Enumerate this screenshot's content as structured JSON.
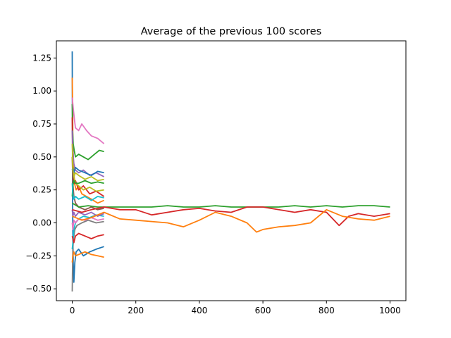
{
  "chart_data": {
    "type": "line",
    "title": "Average of the previous 100 scores",
    "xlabel": "",
    "ylabel": "",
    "xlim": [
      -50,
      1050
    ],
    "ylim": [
      -0.59,
      1.38
    ],
    "grid": false,
    "xticks": [
      0,
      200,
      400,
      600,
      800,
      1000
    ],
    "xtick_labels": [
      "0",
      "200",
      "400",
      "600",
      "800",
      "1000"
    ],
    "yticks": [
      -0.5,
      -0.25,
      0.0,
      0.25,
      0.5,
      0.75,
      1.0,
      1.25
    ],
    "ytick_labels": [
      "−0.50",
      "−0.25",
      "0.00",
      "0.25",
      "0.50",
      "0.75",
      "1.00",
      "1.25"
    ],
    "series": [
      {
        "color": "#1f77b4",
        "x": [
          0,
          1,
          2,
          3,
          5,
          8,
          12,
          20,
          35,
          55,
          75,
          100
        ],
        "values": [
          1.3,
          0.2,
          -0.1,
          -0.3,
          -0.45,
          -0.3,
          -0.22,
          -0.2,
          -0.25,
          -0.22,
          -0.2,
          -0.18
        ]
      },
      {
        "color": "#ff7f0e",
        "x": [
          0,
          1,
          2,
          4,
          7,
          12,
          20,
          30,
          45,
          60,
          80,
          100
        ],
        "values": [
          1.1,
          0.9,
          0.6,
          0.45,
          0.3,
          0.25,
          0.28,
          0.22,
          0.2,
          0.18,
          0.15,
          0.17
        ]
      },
      {
        "color": "#2ca02c",
        "x": [
          0,
          1,
          3,
          6,
          10,
          20,
          35,
          50,
          70,
          85,
          100
        ],
        "values": [
          0.9,
          0.7,
          0.6,
          0.55,
          0.5,
          0.52,
          0.5,
          0.48,
          0.52,
          0.55,
          0.54
        ]
      },
      {
        "color": "#d62728",
        "x": [
          0,
          1,
          3,
          6,
          10,
          20,
          35,
          55,
          75,
          100
        ],
        "values": [
          0.8,
          0.5,
          0.35,
          0.3,
          0.32,
          0.25,
          0.28,
          0.22,
          0.24,
          0.2
        ]
      },
      {
        "color": "#9467bd",
        "x": [
          0,
          2,
          5,
          10,
          20,
          35,
          55,
          75,
          100
        ],
        "values": [
          0.7,
          0.55,
          0.45,
          0.4,
          0.38,
          0.4,
          0.36,
          0.38,
          0.35
        ]
      },
      {
        "color": "#8c564b",
        "x": [
          0,
          2,
          5,
          10,
          20,
          40,
          60,
          80,
          100
        ],
        "values": [
          0.5,
          0.3,
          0.2,
          0.15,
          0.12,
          0.1,
          0.12,
          0.1,
          0.11
        ]
      },
      {
        "color": "#e377c2",
        "x": [
          0,
          2,
          4,
          7,
          10,
          20,
          30,
          45,
          60,
          80,
          100
        ],
        "values": [
          0.95,
          0.9,
          0.85,
          0.78,
          0.72,
          0.7,
          0.75,
          0.7,
          0.66,
          0.64,
          0.6
        ]
      },
      {
        "color": "#7f7f7f",
        "x": [
          0,
          1,
          2,
          4,
          8,
          15,
          30,
          50,
          75,
          100
        ],
        "values": [
          -0.52,
          -0.3,
          -0.2,
          -0.12,
          -0.05,
          -0.02,
          0.0,
          0.02,
          0.0,
          0.01
        ]
      },
      {
        "color": "#bcbd22",
        "x": [
          0,
          2,
          5,
          10,
          20,
          35,
          55,
          75,
          100
        ],
        "values": [
          0.6,
          0.45,
          0.35,
          0.3,
          0.28,
          0.25,
          0.27,
          0.24,
          0.25
        ]
      },
      {
        "color": "#17becf",
        "x": [
          0,
          2,
          5,
          10,
          20,
          35,
          55,
          75,
          100
        ],
        "values": [
          -0.2,
          -0.15,
          -0.05,
          0.0,
          0.03,
          0.05,
          0.04,
          0.06,
          0.05
        ]
      },
      {
        "color": "#1f77b4",
        "x": [
          0,
          2,
          5,
          10,
          20,
          40,
          60,
          80,
          100
        ],
        "values": [
          0.4,
          0.42,
          0.38,
          0.42,
          0.4,
          0.38,
          0.36,
          0.39,
          0.38
        ]
      },
      {
        "color": "#ff7f0e",
        "x": [
          0,
          2,
          5,
          10,
          20,
          40,
          60,
          80,
          100
        ],
        "values": [
          -0.3,
          -0.25,
          -0.22,
          -0.25,
          -0.24,
          -0.22,
          -0.24,
          -0.25,
          -0.26
        ]
      },
      {
        "color": "#2ca02c",
        "x": [
          0,
          2,
          5,
          10,
          20,
          40,
          60,
          80,
          100
        ],
        "values": [
          0.2,
          0.28,
          0.32,
          0.3,
          0.3,
          0.32,
          0.3,
          0.31,
          0.3
        ]
      },
      {
        "color": "#d62728",
        "x": [
          0,
          2,
          5,
          10,
          20,
          40,
          60,
          80,
          100
        ],
        "values": [
          -0.1,
          -0.12,
          -0.15,
          -0.1,
          -0.08,
          -0.1,
          -0.12,
          -0.1,
          -0.09
        ]
      },
      {
        "color": "#9467bd",
        "x": [
          0,
          2,
          5,
          10,
          20,
          40,
          60,
          80,
          100
        ],
        "values": [
          0.1,
          0.05,
          0.08,
          0.05,
          0.08,
          0.06,
          0.08,
          0.05,
          0.07
        ]
      },
      {
        "color": "#bcbd22",
        "x": [
          0,
          2,
          5,
          10,
          20,
          40,
          60,
          80,
          100
        ],
        "values": [
          0.5,
          0.4,
          0.35,
          0.38,
          0.36,
          0.33,
          0.35,
          0.32,
          0.33
        ]
      },
      {
        "color": "#17becf",
        "x": [
          0,
          2,
          5,
          10,
          20,
          40,
          60,
          80,
          100
        ],
        "values": [
          0.3,
          0.22,
          0.18,
          0.2,
          0.18,
          0.2,
          0.17,
          0.2,
          0.19
        ]
      },
      {
        "color": "#e377c2",
        "x": [
          0,
          2,
          5,
          10,
          20,
          40,
          60,
          80,
          100
        ],
        "values": [
          0.0,
          -0.05,
          0.02,
          0.0,
          0.03,
          0.02,
          0.04,
          0.02,
          0.03
        ]
      },
      {
        "color": "#2ca02c",
        "x": [
          0,
          20,
          50,
          80,
          100,
          150,
          200,
          250,
          300,
          350,
          400,
          450,
          500,
          550,
          600,
          650,
          700,
          750,
          800,
          850,
          900,
          950,
          1000
        ],
        "values": [
          0.15,
          0.12,
          0.13,
          0.12,
          0.12,
          0.12,
          0.12,
          0.12,
          0.13,
          0.12,
          0.12,
          0.13,
          0.12,
          0.12,
          0.12,
          0.12,
          0.13,
          0.12,
          0.13,
          0.12,
          0.13,
          0.13,
          0.12
        ]
      },
      {
        "color": "#d62728",
        "x": [
          0,
          30,
          60,
          100,
          150,
          200,
          250,
          300,
          350,
          400,
          450,
          500,
          550,
          600,
          650,
          700,
          750,
          800,
          840,
          870,
          900,
          950,
          1000
        ],
        "values": [
          0.1,
          0.08,
          0.1,
          0.12,
          0.1,
          0.1,
          0.06,
          0.08,
          0.1,
          0.11,
          0.09,
          0.08,
          0.12,
          0.12,
          0.1,
          0.08,
          0.1,
          0.08,
          -0.02,
          0.05,
          0.07,
          0.05,
          0.07
        ]
      },
      {
        "color": "#ff7f0e",
        "x": [
          0,
          30,
          60,
          100,
          150,
          200,
          250,
          300,
          350,
          400,
          450,
          500,
          550,
          580,
          600,
          650,
          700,
          750,
          800,
          850,
          900,
          950,
          1000
        ],
        "values": [
          0.05,
          0.02,
          0.04,
          0.08,
          0.03,
          0.02,
          0.01,
          0.0,
          -0.03,
          0.02,
          0.08,
          0.05,
          0.0,
          -0.07,
          -0.05,
          -0.03,
          -0.02,
          0.0,
          0.1,
          0.05,
          0.03,
          0.02,
          0.05
        ]
      }
    ]
  }
}
